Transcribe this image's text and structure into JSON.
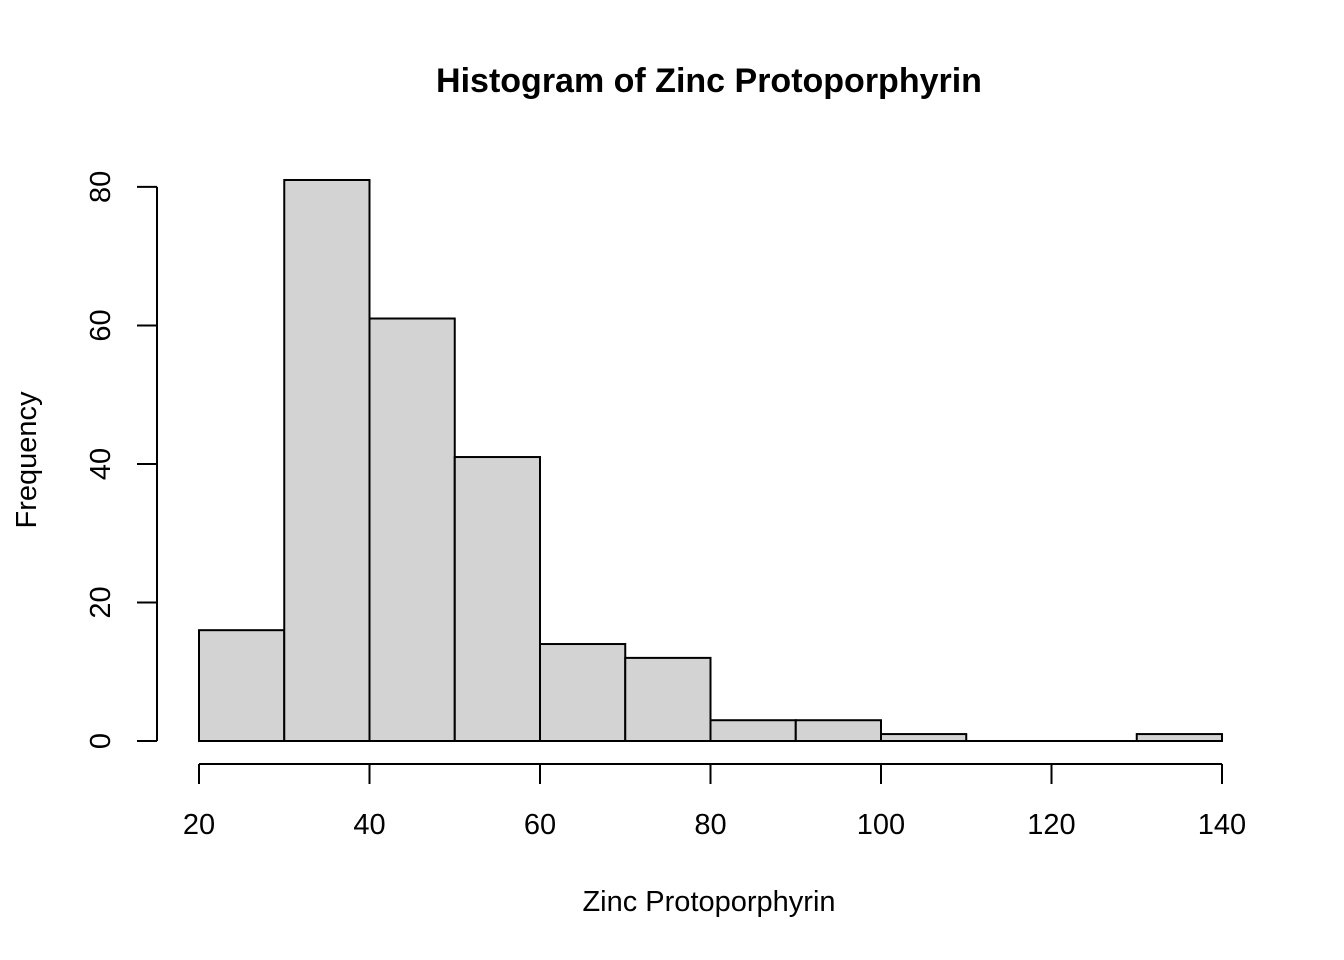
{
  "chart_data": {
    "type": "bar",
    "subtype": "histogram",
    "title": "Histogram of Zinc Protoporphyrin",
    "xlabel": "Zinc Protoporphyrin",
    "ylabel": "Frequency",
    "bins": [
      {
        "start": 20,
        "end": 30,
        "count": 16
      },
      {
        "start": 30,
        "end": 40,
        "count": 81
      },
      {
        "start": 40,
        "end": 50,
        "count": 61
      },
      {
        "start": 50,
        "end": 60,
        "count": 41
      },
      {
        "start": 60,
        "end": 70,
        "count": 14
      },
      {
        "start": 70,
        "end": 80,
        "count": 12
      },
      {
        "start": 80,
        "end": 90,
        "count": 3
      },
      {
        "start": 90,
        "end": 100,
        "count": 3
      },
      {
        "start": 100,
        "end": 110,
        "count": 1
      },
      {
        "start": 110,
        "end": 120,
        "count": 0
      },
      {
        "start": 120,
        "end": 130,
        "count": 0
      },
      {
        "start": 130,
        "end": 140,
        "count": 1
      }
    ],
    "xticks": [
      20,
      40,
      60,
      80,
      100,
      120,
      140
    ],
    "yticks": [
      0,
      20,
      40,
      60,
      80
    ],
    "xlim": [
      20,
      140
    ],
    "ylim": [
      0,
      81
    ],
    "grid": false,
    "colors": {
      "bar_fill": "#d3d3d3",
      "bar_stroke": "#000000"
    }
  }
}
